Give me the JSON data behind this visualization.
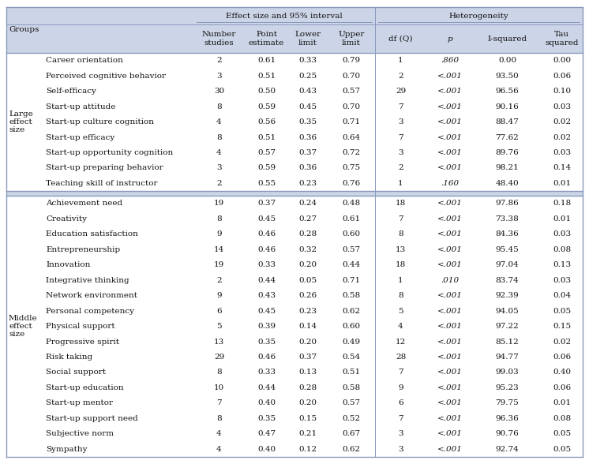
{
  "large_group_label": "Large\neffect\nsize",
  "middle_group_label": "Middle\neffect\nsize",
  "large_rows": [
    [
      "Career orientation",
      "2",
      "0.61",
      "0.33",
      "0.79",
      "1",
      ".860",
      "0.00",
      "0.00"
    ],
    [
      "Perceived cognitive behavior",
      "3",
      "0.51",
      "0.25",
      "0.70",
      "2",
      "<.001",
      "93.50",
      "0.06"
    ],
    [
      "Self-efficacy",
      "30",
      "0.50",
      "0.43",
      "0.57",
      "29",
      "<.001",
      "96.56",
      "0.10"
    ],
    [
      "Start-up attitude",
      "8",
      "0.59",
      "0.45",
      "0.70",
      "7",
      "<.001",
      "90.16",
      "0.03"
    ],
    [
      "Start-up culture cognition",
      "4",
      "0.56",
      "0.35",
      "0.71",
      "3",
      "<.001",
      "88.47",
      "0.02"
    ],
    [
      "Start-up efficacy",
      "8",
      "0.51",
      "0.36",
      "0.64",
      "7",
      "<.001",
      "77.62",
      "0.02"
    ],
    [
      "Start-up opportunity cognition",
      "4",
      "0.57",
      "0.37",
      "0.72",
      "3",
      "<.001",
      "89.76",
      "0.03"
    ],
    [
      "Start-up preparing behavior",
      "3",
      "0.59",
      "0.36",
      "0.75",
      "2",
      "<.001",
      "98.21",
      "0.14"
    ],
    [
      "Teaching skill of instructor",
      "2",
      "0.55",
      "0.23",
      "0.76",
      "1",
      ".160",
      "48.40",
      "0.01"
    ]
  ],
  "middle_rows": [
    [
      "Achievement need",
      "19",
      "0.37",
      "0.24",
      "0.48",
      "18",
      "<.001",
      "97.86",
      "0.18"
    ],
    [
      "Creativity",
      "8",
      "0.45",
      "0.27",
      "0.61",
      "7",
      "<.001",
      "73.38",
      "0.01"
    ],
    [
      "Education satisfaction",
      "9",
      "0.46",
      "0.28",
      "0.60",
      "8",
      "<.001",
      "84.36",
      "0.03"
    ],
    [
      "Entrepreneurship",
      "14",
      "0.46",
      "0.32",
      "0.57",
      "13",
      "<.001",
      "95.45",
      "0.08"
    ],
    [
      "Innovation",
      "19",
      "0.33",
      "0.20",
      "0.44",
      "18",
      "<.001",
      "97.04",
      "0.13"
    ],
    [
      "Integrative thinking",
      "2",
      "0.44",
      "0.05",
      "0.71",
      "1",
      ".010",
      "83.74",
      "0.03"
    ],
    [
      "Network environment",
      "9",
      "0.43",
      "0.26",
      "0.58",
      "8",
      "<.001",
      "92.39",
      "0.04"
    ],
    [
      "Personal competency",
      "6",
      "0.45",
      "0.23",
      "0.62",
      "5",
      "<.001",
      "94.05",
      "0.05"
    ],
    [
      "Physical support",
      "5",
      "0.39",
      "0.14",
      "0.60",
      "4",
      "<.001",
      "97.22",
      "0.15"
    ],
    [
      "Progressive spirit",
      "13",
      "0.35",
      "0.20",
      "0.49",
      "12",
      "<.001",
      "85.12",
      "0.02"
    ],
    [
      "Risk taking",
      "29",
      "0.46",
      "0.37",
      "0.54",
      "28",
      "<.001",
      "94.77",
      "0.06"
    ],
    [
      "Social support",
      "8",
      "0.33",
      "0.13",
      "0.51",
      "7",
      "<.001",
      "99.03",
      "0.40"
    ],
    [
      "Start-up education",
      "10",
      "0.44",
      "0.28",
      "0.58",
      "9",
      "<.001",
      "95.23",
      "0.06"
    ],
    [
      "Start-up mentor",
      "7",
      "0.40",
      "0.20",
      "0.57",
      "6",
      "<.001",
      "79.75",
      "0.01"
    ],
    [
      "Start-up support need",
      "8",
      "0.35",
      "0.15",
      "0.52",
      "7",
      "<.001",
      "96.36",
      "0.08"
    ],
    [
      "Subjective norm",
      "4",
      "0.47",
      "0.21",
      "0.67",
      "3",
      "<.001",
      "90.76",
      "0.05"
    ],
    [
      "Sympathy",
      "4",
      "0.40",
      "0.12",
      "0.62",
      "3",
      "<.001",
      "92.74",
      "0.05"
    ]
  ],
  "header_bg": "#ccd5e8",
  "data_bg": "#ffffff",
  "separator_bg": "#ccd5e8",
  "border_color": "#8899bb",
  "text_color": "#111111",
  "font_size": 7.5,
  "font_family": "DejaVu Serif"
}
